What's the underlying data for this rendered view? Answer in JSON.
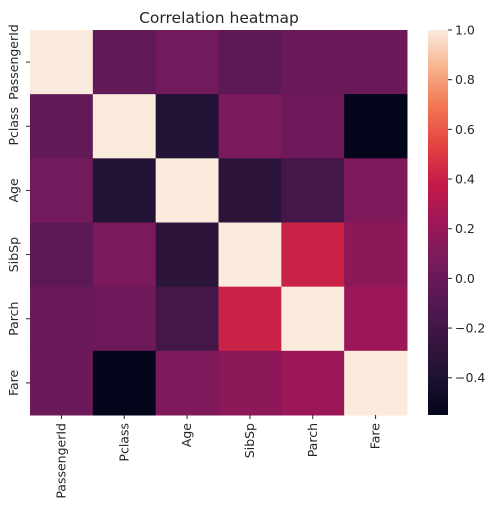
{
  "chart_data": {
    "type": "heatmap",
    "title": "Correlation heatmap",
    "xlabel": "",
    "ylabel": "",
    "rows": [
      "PassengerId",
      "Pclass",
      "Age",
      "SibSp",
      "Parch",
      "Fare"
    ],
    "columns": [
      "PassengerId",
      "Pclass",
      "Age",
      "SibSp",
      "Parch",
      "Fare"
    ],
    "values": [
      [
        1.0,
        -0.04,
        0.04,
        -0.06,
        0.0,
        0.01
      ],
      [
        -0.04,
        1.0,
        -0.37,
        0.08,
        0.02,
        -0.55
      ],
      [
        0.04,
        -0.37,
        1.0,
        -0.31,
        -0.19,
        0.1
      ],
      [
        -0.06,
        0.08,
        -0.31,
        1.0,
        0.41,
        0.16
      ],
      [
        0.0,
        0.02,
        -0.19,
        0.41,
        1.0,
        0.22
      ],
      [
        0.01,
        -0.55,
        0.1,
        0.16,
        0.22,
        1.0
      ]
    ],
    "colorbar": {
      "min": -0.55,
      "max": 1.0,
      "ticks": [
        1.0,
        0.8,
        0.6,
        0.4,
        0.2,
        0.0,
        -0.2,
        -0.4
      ],
      "tick_labels": [
        "1.0",
        "0.8",
        "0.6",
        "0.4",
        "0.2",
        "0.0",
        "−0.2",
        "−0.4"
      ],
      "colormap": "rocket"
    }
  }
}
